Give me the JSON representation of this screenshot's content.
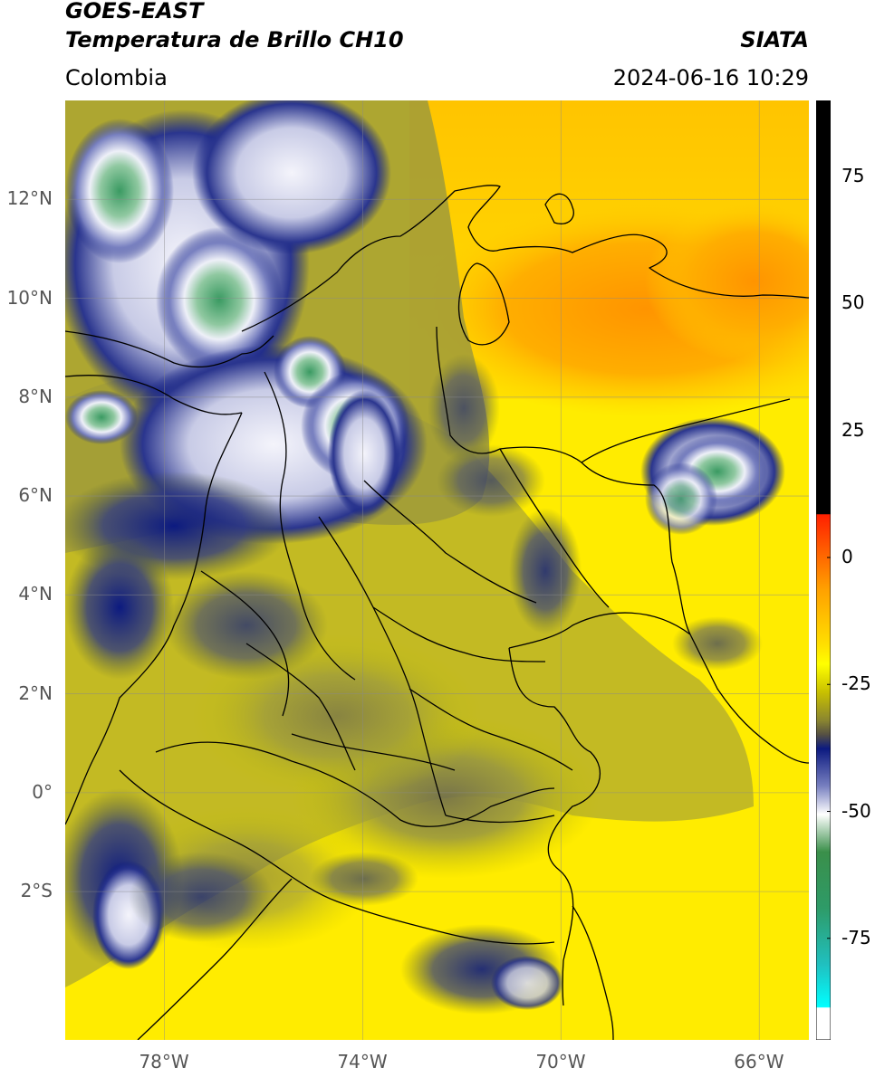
{
  "header": {
    "satellite": "GOES-EAST",
    "product": "Temperatura de Brillo CH10",
    "region": "Colombia",
    "agency": "SIATA",
    "datetime": "2024-06-16 10:29"
  },
  "map": {
    "lon_range": [
      -80,
      -65
    ],
    "lat_range": [
      -5,
      14
    ],
    "lat_ticks": [
      {
        "lat": 12,
        "label": "12°N"
      },
      {
        "lat": 10,
        "label": "10°N"
      },
      {
        "lat": 8,
        "label": "8°N"
      },
      {
        "lat": 6,
        "label": "6°N"
      },
      {
        "lat": 4,
        "label": "4°N"
      },
      {
        "lat": 2,
        "label": "2°N"
      },
      {
        "lat": 0,
        "label": "0°"
      },
      {
        "lat": -2,
        "label": "2°S"
      }
    ],
    "lon_ticks": [
      {
        "lon": -78,
        "label": "78°W"
      },
      {
        "lon": -74,
        "label": "74°W"
      },
      {
        "lon": -70,
        "label": "70°W"
      },
      {
        "lon": -66,
        "label": "66°W"
      }
    ],
    "grid": true,
    "colors": {
      "warm_orange": "#ff9a00",
      "yellow": "#ffff00",
      "olive": "#a8a838",
      "gray_olive": "#6f6d4e",
      "navy": "#0c1a80",
      "white_cloud": "#eceef8",
      "green": "#3a8f4a"
    }
  },
  "colorbar": {
    "range": [
      -95,
      90
    ],
    "ticks": [
      {
        "value": 75,
        "label": "75"
      },
      {
        "value": 50,
        "label": "50"
      },
      {
        "value": 25,
        "label": "25"
      },
      {
        "value": 0,
        "label": "0"
      },
      {
        "value": -25,
        "label": "-25"
      },
      {
        "value": -50,
        "label": "-50"
      },
      {
        "value": -75,
        "label": "-75"
      }
    ]
  }
}
